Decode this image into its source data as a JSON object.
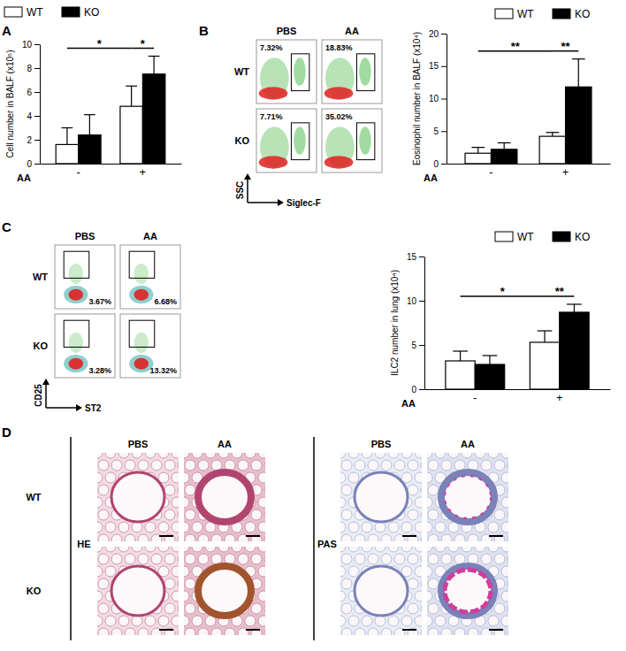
{
  "chart_data": [
    {
      "type": "bar",
      "panel": "A",
      "y_label": "Cell number in BALF (x10⁵)",
      "x_label": "AA",
      "categories": [
        "-",
        "+"
      ],
      "series": [
        {
          "name": "WT",
          "color": "#ffffff",
          "values": [
            1.6,
            4.8
          ],
          "errors": [
            1.4,
            1.7
          ]
        },
        {
          "name": "KO",
          "color": "#000000",
          "values": [
            2.4,
            7.5
          ],
          "errors": [
            1.7,
            1.5
          ]
        }
      ],
      "ylim": [
        0,
        10
      ],
      "yticks": [
        0,
        2,
        4,
        6,
        8,
        10
      ],
      "legend": "top-left",
      "annotations": [
        {
          "text": "*",
          "span": "WT"
        },
        {
          "text": "*",
          "span": "+"
        }
      ]
    },
    {
      "type": "flow",
      "panel": "B",
      "columns": [
        "PBS",
        "AA"
      ],
      "rows": [
        "WT",
        "KO"
      ],
      "x_label": "Siglec-F",
      "y_label": "SSC",
      "values": [
        [
          7.32,
          18.83
        ],
        [
          7.71,
          35.02
        ]
      ],
      "value_labels": [
        [
          "7.32%",
          "18.83%"
        ],
        [
          "7.71%",
          "35.02%"
        ]
      ]
    },
    {
      "type": "bar",
      "y_label": "Eosinophil number in BALF (x10⁴)",
      "x_label": "AA",
      "categories": [
        "-",
        "+"
      ],
      "series": [
        {
          "name": "WT",
          "color": "#ffffff",
          "values": [
            1.6,
            4.2
          ],
          "errors": [
            0.9,
            0.6
          ]
        },
        {
          "name": "KO",
          "color": "#000000",
          "values": [
            2.2,
            11.8
          ],
          "errors": [
            1.0,
            4.3
          ]
        }
      ],
      "ylim": [
        0,
        20
      ],
      "yticks": [
        0,
        5,
        10,
        15,
        20
      ],
      "legend": "top-right",
      "annotations": [
        {
          "text": "**",
          "span": "WT"
        },
        {
          "text": "**",
          "span": "+"
        }
      ]
    },
    {
      "type": "flow",
      "panel": "C",
      "columns": [
        "PBS",
        "AA"
      ],
      "rows": [
        "WT",
        "KO"
      ],
      "x_label": "ST2",
      "y_label": "CD25",
      "values": [
        [
          3.67,
          6.68
        ],
        [
          3.28,
          13.32
        ]
      ],
      "value_labels": [
        [
          "3.67%",
          "6.68%"
        ],
        [
          "3.28%",
          "13.32%"
        ]
      ]
    },
    {
      "type": "bar",
      "y_label": "ILC2 number in lung (x10⁴)",
      "x_label": "AA",
      "categories": [
        "-",
        "+"
      ],
      "series": [
        {
          "name": "WT",
          "color": "#ffffff",
          "values": [
            3.2,
            5.3
          ],
          "errors": [
            1.1,
            1.3
          ]
        },
        {
          "name": "KO",
          "color": "#000000",
          "values": [
            2.8,
            8.7
          ],
          "errors": [
            1.0,
            0.9
          ]
        }
      ],
      "ylim": [
        0,
        15
      ],
      "yticks": [
        0,
        5,
        10,
        15
      ],
      "legend": "top-right",
      "annotations": [
        {
          "text": "*",
          "span": "WT"
        },
        {
          "text": "**",
          "span": "+"
        }
      ]
    },
    {
      "type": "image",
      "panel": "D",
      "columns": [
        "PBS",
        "AA"
      ],
      "rows": [
        "WT",
        "KO"
      ],
      "stains": [
        "HE",
        "PAS"
      ]
    }
  ]
}
